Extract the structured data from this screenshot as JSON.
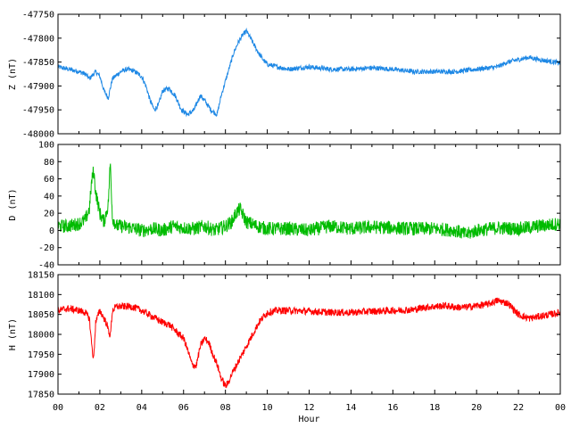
{
  "chart_data": [
    {
      "type": "line",
      "ylabel": "Z (nT)",
      "ylim": [
        -48000,
        -47750
      ],
      "yticks": [
        -47750,
        -47800,
        -47850,
        -47900,
        -47950,
        -48000
      ],
      "color": "#1e88e5",
      "noise": 5,
      "series_points": {
        "x": [
          0,
          0.5,
          1,
          1.3,
          1.5,
          1.8,
          2.0,
          2.2,
          2.4,
          2.6,
          3.0,
          3.3,
          3.6,
          4.0,
          4.2,
          4.4,
          4.6,
          4.8,
          5.0,
          5.3,
          5.6,
          5.9,
          6.2,
          6.5,
          6.8,
          7.0,
          7.3,
          7.6,
          7.8,
          8.0,
          8.2,
          8.4,
          8.6,
          8.8,
          9.0,
          9.2,
          9.5,
          9.8,
          10.0,
          10.5,
          11,
          12,
          13,
          14,
          15,
          16,
          17,
          18,
          19,
          20,
          21,
          21.5,
          22,
          22.5,
          23,
          24
        ],
        "y": [
          -47860,
          -47865,
          -47870,
          -47875,
          -47885,
          -47870,
          -47880,
          -47910,
          -47925,
          -47885,
          -47870,
          -47865,
          -47868,
          -47880,
          -47900,
          -47930,
          -47950,
          -47940,
          -47910,
          -47905,
          -47920,
          -47950,
          -47960,
          -47950,
          -47920,
          -47930,
          -47950,
          -47960,
          -47920,
          -47890,
          -47860,
          -47830,
          -47810,
          -47795,
          -47785,
          -47800,
          -47825,
          -47845,
          -47855,
          -47860,
          -47865,
          -47860,
          -47865,
          -47865,
          -47862,
          -47865,
          -47870,
          -47870,
          -47870,
          -47865,
          -47860,
          -47850,
          -47845,
          -47840,
          -47845,
          -47852
        ]
      }
    },
    {
      "type": "line",
      "ylabel": "D (nT)",
      "ylim": [
        -40,
        100
      ],
      "yticks": [
        100,
        80,
        60,
        40,
        20,
        0,
        -20,
        -40
      ],
      "color": "#00bb00",
      "noise": 8,
      "series_points": {
        "x": [
          0,
          0.5,
          1.0,
          1.3,
          1.5,
          1.6,
          1.7,
          1.8,
          2.0,
          2.2,
          2.4,
          2.5,
          2.6,
          2.8,
          3.0,
          3.5,
          4.0,
          4.5,
          5.0,
          5.5,
          6.0,
          6.5,
          7.0,
          7.5,
          8.0,
          8.3,
          8.5,
          8.7,
          9.0,
          9.5,
          10,
          11,
          12,
          13,
          14,
          15,
          16,
          17,
          18,
          19,
          19.5,
          20,
          21,
          22,
          23,
          24
        ],
        "y": [
          5,
          5,
          8,
          12,
          25,
          55,
          70,
          45,
          20,
          10,
          30,
          80,
          15,
          5,
          5,
          3,
          0,
          2,
          0,
          5,
          3,
          2,
          5,
          0,
          5,
          10,
          20,
          25,
          10,
          5,
          2,
          2,
          0,
          5,
          2,
          4,
          3,
          2,
          2,
          0,
          -5,
          0,
          3,
          2,
          5,
          8
        ]
      }
    },
    {
      "type": "line",
      "ylabel": "H (nT)",
      "ylim": [
        17850,
        18150
      ],
      "yticks": [
        18150,
        18100,
        18050,
        18000,
        17950,
        17900,
        17850
      ],
      "color": "#ff0000",
      "noise": 9,
      "series_points": {
        "x": [
          0,
          0.5,
          1.0,
          1.3,
          1.5,
          1.6,
          1.7,
          1.8,
          2.0,
          2.3,
          2.5,
          2.6,
          2.8,
          3.0,
          3.5,
          4.0,
          4.5,
          5.0,
          5.3,
          5.6,
          6.0,
          6.2,
          6.4,
          6.6,
          6.8,
          7.0,
          7.2,
          7.4,
          7.6,
          7.8,
          8.0,
          8.1,
          8.3,
          8.6,
          9.0,
          9.3,
          9.6,
          10.0,
          10.5,
          11,
          12,
          13,
          14,
          15,
          16,
          17,
          17.5,
          18,
          18.5,
          19,
          19.5,
          20,
          20.5,
          21,
          21.5,
          22,
          22.5,
          23,
          24
        ],
        "y": [
          18060,
          18065,
          18060,
          18055,
          18040,
          17980,
          17935,
          18030,
          18060,
          18030,
          17995,
          18060,
          18070,
          18070,
          18070,
          18060,
          18045,
          18030,
          18025,
          18010,
          17990,
          17960,
          17925,
          17920,
          17970,
          17990,
          17980,
          17950,
          17925,
          17890,
          17870,
          17875,
          17900,
          17930,
          17970,
          18000,
          18030,
          18055,
          18060,
          18060,
          18058,
          18055,
          18055,
          18058,
          18060,
          18062,
          18068,
          18070,
          18072,
          18068,
          18068,
          18072,
          18075,
          18085,
          18078,
          18050,
          18040,
          18045,
          18055
        ]
      }
    }
  ],
  "x_axis": {
    "xlabel": "Hour",
    "xlim": [
      0,
      24
    ],
    "tick_labels": [
      "00",
      "02",
      "04",
      "06",
      "08",
      "10",
      "12",
      "14",
      "16",
      "18",
      "20",
      "22",
      "00"
    ]
  }
}
